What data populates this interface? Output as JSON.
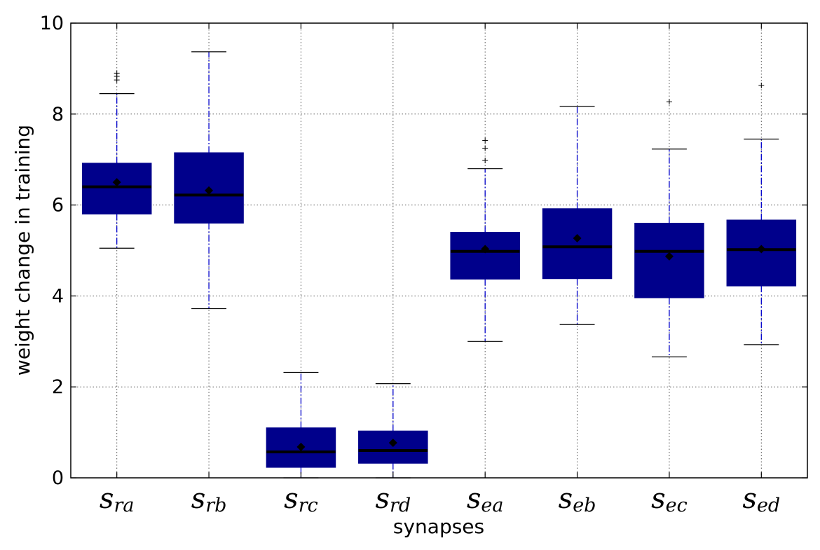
{
  "chart_data": {
    "type": "box",
    "title": "",
    "xlabel": "synapses",
    "ylabel": "weight change in training",
    "ylim": [
      0,
      10
    ],
    "yticks": [
      "0",
      "2",
      "4",
      "6",
      "8",
      "10"
    ],
    "grid": true,
    "colors": {
      "box_fill": "#00008b",
      "whisker": "#0000cc",
      "median": "#000000",
      "mean_marker": "#000000",
      "grid": "#555555"
    },
    "categories": [
      {
        "base": "s",
        "sub": "ra"
      },
      {
        "base": "s",
        "sub": "rb"
      },
      {
        "base": "s",
        "sub": "rc"
      },
      {
        "base": "s",
        "sub": "rd"
      },
      {
        "base": "s",
        "sub": "ea"
      },
      {
        "base": "s",
        "sub": "eb"
      },
      {
        "base": "s",
        "sub": "ec"
      },
      {
        "base": "s",
        "sub": "ed"
      }
    ],
    "boxes": [
      {
        "whisker_low": 5.05,
        "q1": 5.8,
        "median": 6.4,
        "q3": 6.92,
        "whisker_high": 8.45,
        "mean": 6.5,
        "outliers": [
          8.75,
          8.83,
          8.9
        ]
      },
      {
        "whisker_low": 3.72,
        "q1": 5.6,
        "median": 6.22,
        "q3": 7.15,
        "whisker_high": 9.37,
        "mean": 6.32,
        "outliers": []
      },
      {
        "whisker_low": 0.0,
        "q1": 0.23,
        "median": 0.57,
        "q3": 1.1,
        "whisker_high": 2.32,
        "mean": 0.68,
        "outliers": []
      },
      {
        "whisker_low": 0.0,
        "q1": 0.32,
        "median": 0.6,
        "q3": 1.03,
        "whisker_high": 2.07,
        "mean": 0.77,
        "outliers": []
      },
      {
        "whisker_low": 3.0,
        "q1": 4.37,
        "median": 4.98,
        "q3": 5.4,
        "whisker_high": 6.8,
        "mean": 5.03,
        "outliers": [
          6.98,
          7.25,
          7.42
        ]
      },
      {
        "whisker_low": 3.37,
        "q1": 4.38,
        "median": 5.08,
        "q3": 5.92,
        "whisker_high": 8.17,
        "mean": 5.27,
        "outliers": []
      },
      {
        "whisker_low": 2.66,
        "q1": 3.96,
        "median": 4.98,
        "q3": 5.6,
        "whisker_high": 7.23,
        "mean": 4.87,
        "outliers": [
          8.27
        ]
      },
      {
        "whisker_low": 2.93,
        "q1": 4.22,
        "median": 5.02,
        "q3": 5.67,
        "whisker_high": 7.45,
        "mean": 5.03,
        "outliers": [
          8.63
        ]
      }
    ]
  }
}
